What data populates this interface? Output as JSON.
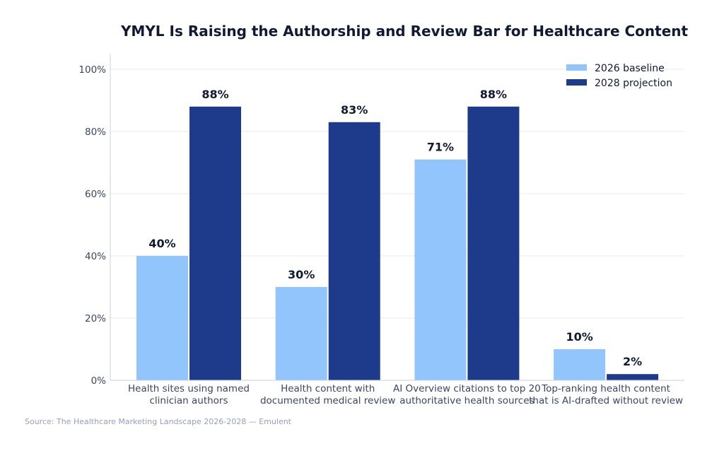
{
  "chart_data": {
    "type": "bar",
    "title": "YMYL Is Raising the Authorship and Review Bar for Healthcare Content",
    "xlabel": "",
    "ylabel": "",
    "ylim": [
      0,
      100
    ],
    "yticks": [
      0,
      20,
      40,
      60,
      80,
      100
    ],
    "ytick_labels": [
      "0%",
      "20%",
      "40%",
      "60%",
      "80%",
      "100%"
    ],
    "grid": true,
    "legend_position": "top-right",
    "categories": [
      [
        "Health sites using named",
        "clinician authors"
      ],
      [
        "Health content with",
        "documented medical review"
      ],
      [
        "AI Overview citations to top 20",
        "authoritative health sources"
      ],
      [
        "Top-ranking health content",
        "that is AI-drafted without review"
      ]
    ],
    "series": [
      {
        "name": "2026 baseline",
        "values": [
          40,
          30,
          71,
          10
        ],
        "labels": [
          "40%",
          "30%",
          "71%",
          "10%"
        ],
        "color": "#93c5fd"
      },
      {
        "name": "2028 projection",
        "values": [
          88,
          83,
          88,
          2
        ],
        "labels": [
          "88%",
          "83%",
          "88%",
          "2%"
        ],
        "color": "#1e3a8a"
      }
    ]
  },
  "source_text": "Source: The Healthcare Marketing Landscape 2026-2028 — Emulent",
  "colors": {
    "axis": "#cbd2e1",
    "grid": "#e5e8ef"
  }
}
